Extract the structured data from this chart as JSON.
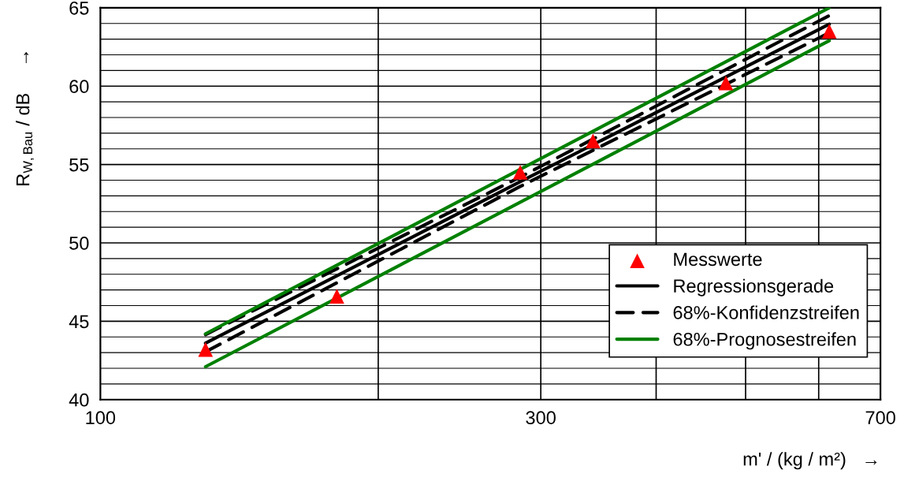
{
  "chart_data": {
    "type": "line",
    "xlabel": "m' / (kg / m²)   →",
    "ylabel": "R$_{W,Bau}$ / dB     →",
    "log": "x",
    "xlim": [
      100,
      700
    ],
    "xticks": [
      100,
      {
        "value": 200,
        "label": null
      },
      300,
      {
        "value": 400,
        "label": null
      },
      {
        "value": 500,
        "label": null
      },
      {
        "value": 600,
        "label": null
      },
      700
    ],
    "ylim": [
      40,
      65
    ],
    "yticks": [
      40,
      {
        "value": 41,
        "label": null
      },
      {
        "value": 42,
        "label": null
      },
      {
        "value": 43,
        "label": null
      },
      {
        "value": 44,
        "label": null
      },
      45,
      {
        "value": 46,
        "label": null
      },
      {
        "value": 47,
        "label": null
      },
      {
        "value": 48,
        "label": null
      },
      {
        "value": 49,
        "label": null
      },
      50,
      {
        "value": 51,
        "label": null
      },
      {
        "value": 52,
        "label": null
      },
      {
        "value": 53,
        "label": null
      },
      {
        "value": 54,
        "label": null
      },
      55,
      {
        "value": 56,
        "label": null
      },
      {
        "value": 57,
        "label": null
      },
      {
        "value": 58,
        "label": null
      },
      {
        "value": 59,
        "label": null
      },
      60,
      {
        "value": 61,
        "label": null
      },
      {
        "value": 62,
        "label": null
      },
      {
        "value": 63,
        "label": null
      },
      {
        "value": 64,
        "label": null
      },
      65
    ],
    "grid": true,
    "legend": "bottom right",
    "series": [
      {
        "name": "Messwerte",
        "type": "scatter",
        "marker": "triangle",
        "color": "#ff0000",
        "x": [
          130,
          180.4,
          285,
          341.7,
          476,
          616
        ],
        "values": [
          43.2,
          46.6,
          54.5,
          56.5,
          60.2,
          63.5
        ]
      },
      {
        "name": "Regressionsgerade",
        "line_style": "solid",
        "color": "#000000",
        "x": [
          130,
          285,
          616
        ],
        "values": [
          43.6,
          53.9,
          63.95
        ]
      },
      {
        "name": "68%-Konfidenzstreifen",
        "line_style": "dashed",
        "color": "#000000",
        "x": [
          130,
          285,
          616
        ],
        "values": [
          44.15,
          54.2,
          64.5
        ]
      },
      {
        "line_style": "dashed",
        "color": "#000000",
        "x": [
          130,
          285,
          616
        ],
        "values": [
          43.05,
          53.6,
          63.4
        ]
      },
      {
        "name": "68%-Prognosestreifen",
        "line_style": "solid",
        "color": "#008000",
        "x": [
          130,
          616
        ],
        "values": [
          44.2,
          65.0
        ]
      },
      {
        "line_style": "solid",
        "color": "#008000",
        "x": [
          130,
          616
        ],
        "values": [
          42.1,
          62.9
        ]
      }
    ]
  }
}
